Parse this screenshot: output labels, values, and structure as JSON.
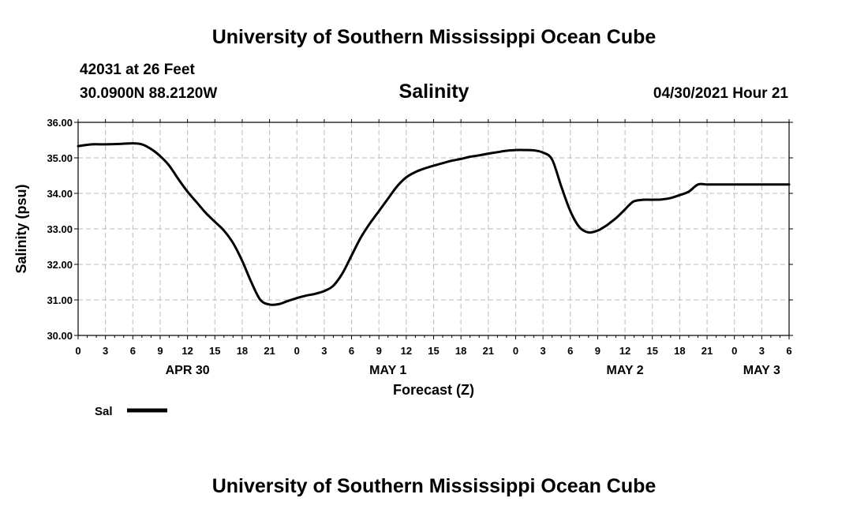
{
  "header": {
    "title_top": "University of Southern Mississippi Ocean Cube",
    "station": "42031 at 26 Feet",
    "location": "30.0900N  88.2120W",
    "chart_title": "Salinity",
    "timestamp": "04/30/2021 Hour 21",
    "title_bottom": "University of Southern Mississippi Ocean Cube"
  },
  "legend": {
    "label": "Sal"
  },
  "chart_data": {
    "type": "line",
    "title": "Salinity",
    "ylabel": "Salinity (psu)",
    "xlabel": "Forecast (Z)",
    "ylim": [
      30,
      36
    ],
    "xlim": [
      0,
      78
    ],
    "grid": true,
    "line_color": "#000000",
    "y_ticks": [
      "30.00",
      "31.00",
      "32.00",
      "33.00",
      "34.00",
      "35.00",
      "36.00"
    ],
    "x_tick_labels": [
      "0",
      "3",
      "6",
      "9",
      "12",
      "15",
      "18",
      "21",
      "0",
      "3",
      "6",
      "9",
      "12",
      "15",
      "18",
      "21",
      "0",
      "3",
      "6",
      "9",
      "12",
      "15",
      "18",
      "21",
      "0",
      "3",
      "6"
    ],
    "date_labels": [
      {
        "label": "APR 30",
        "hours": 12
      },
      {
        "label": "MAY 1",
        "hours": 34
      },
      {
        "label": "MAY 2",
        "hours": 60
      },
      {
        "label": "MAY 3",
        "hours": 75
      }
    ],
    "series": [
      {
        "name": "Sal",
        "x": [
          0,
          1.5,
          3,
          4.5,
          6,
          7,
          8,
          9,
          10,
          11,
          12,
          13,
          14,
          15,
          16,
          17,
          18,
          19,
          20,
          21,
          22,
          23,
          24,
          25,
          26,
          27,
          28,
          29,
          30,
          31,
          32,
          33,
          34,
          35,
          36,
          37,
          38,
          39,
          40,
          41,
          42,
          43,
          44,
          45,
          46,
          47,
          48,
          49,
          50,
          51,
          52,
          53,
          54,
          55,
          56,
          57,
          57.5,
          58,
          58.5,
          59,
          59.5,
          60,
          60.5,
          61,
          62,
          63,
          64,
          65,
          66,
          67,
          68,
          69,
          70,
          71,
          72,
          73,
          74,
          75,
          76,
          77,
          78
        ],
        "y": [
          35.33,
          35.38,
          35.38,
          35.39,
          35.41,
          35.38,
          35.25,
          35.05,
          34.78,
          34.4,
          34.05,
          33.75,
          33.45,
          33.2,
          32.95,
          32.6,
          32.1,
          31.5,
          31.0,
          30.87,
          30.88,
          30.97,
          31.05,
          31.12,
          31.17,
          31.25,
          31.4,
          31.75,
          32.25,
          32.75,
          33.15,
          33.5,
          33.85,
          34.2,
          34.45,
          34.6,
          34.7,
          34.78,
          34.85,
          34.92,
          34.97,
          35.03,
          35.07,
          35.12,
          35.16,
          35.2,
          35.22,
          35.22,
          35.21,
          35.15,
          34.95,
          34.2,
          33.5,
          33.05,
          32.9,
          32.95,
          33.02,
          33.1,
          33.2,
          33.3,
          33.42,
          33.55,
          33.68,
          33.78,
          33.82,
          33.82,
          33.83,
          33.87,
          33.95,
          34.05,
          34.25,
          34.25,
          34.25,
          34.25,
          34.25,
          34.25,
          34.25,
          34.25,
          34.25,
          34.25,
          34.25
        ]
      }
    ]
  }
}
